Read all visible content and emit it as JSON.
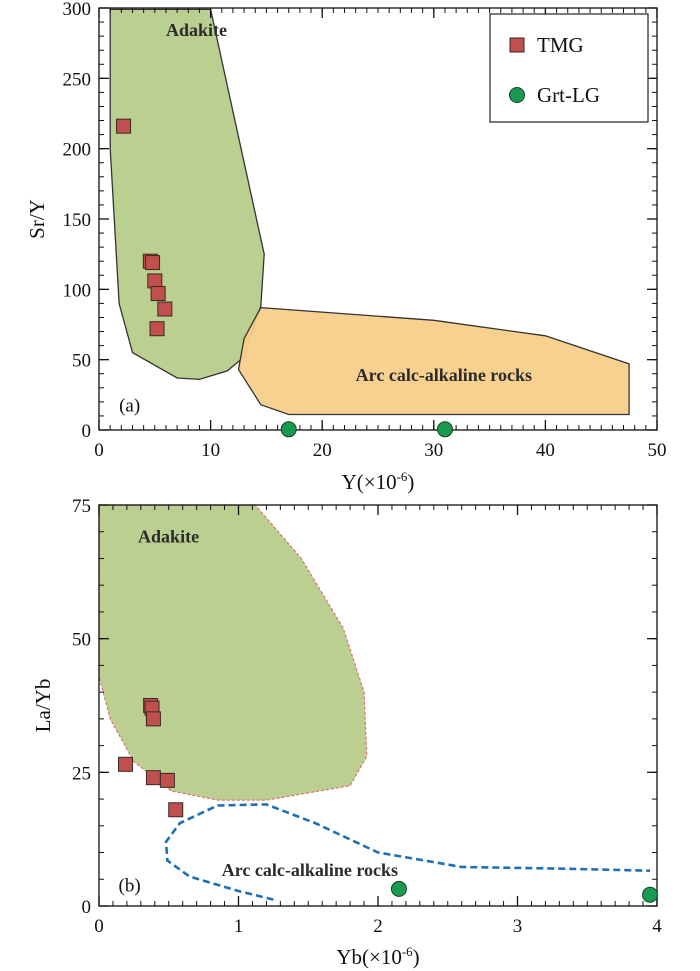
{
  "chart_data": [
    {
      "type": "scatter",
      "panel_label": "(a)",
      "xlabel": "Y(×10",
      "xlabel_sup": "-6",
      "xlabel_close": ")",
      "ylabel": "Sr/Y",
      "xlim": [
        0,
        50
      ],
      "ylim": [
        0,
        300
      ],
      "x_ticks": [
        "0",
        "10",
        "20",
        "30",
        "40",
        "50"
      ],
      "y_ticks": [
        "0",
        "50",
        "100",
        "150",
        "200",
        "250",
        "300"
      ],
      "regions": [
        {
          "name": "Adakite",
          "fill": "#b7cc8a",
          "stroke": "#333333",
          "polygon": [
            [
              1,
              299
            ],
            [
              10,
              299
            ],
            [
              14.8,
              125
            ],
            [
              14.5,
              88
            ],
            [
              13,
              52
            ],
            [
              11.5,
              42
            ],
            [
              9,
              36
            ],
            [
              7,
              37
            ],
            [
              3,
              55
            ],
            [
              1.8,
              90
            ],
            [
              1,
              200
            ]
          ]
        },
        {
          "name": "Arc calc-alkaline rocks",
          "fill": "#f8cf8a",
          "stroke": "#333333",
          "polygon": [
            [
              14.5,
              87
            ],
            [
              30,
              78
            ],
            [
              40,
              67
            ],
            [
              47.5,
              47
            ],
            [
              47.5,
              11
            ],
            [
              17,
              11
            ],
            [
              14.5,
              18
            ],
            [
              12.5,
              43
            ],
            [
              13,
              65
            ]
          ]
        }
      ],
      "series": [
        {
          "name": "TMG",
          "marker": "square",
          "color": "#c0504d",
          "points": [
            [
              2.2,
              216
            ],
            [
              4.6,
              120
            ],
            [
              4.8,
              119
            ],
            [
              5.0,
              106
            ],
            [
              5.3,
              97
            ],
            [
              5.9,
              86
            ],
            [
              5.2,
              72
            ]
          ]
        },
        {
          "name": "Grt-LG",
          "marker": "circle",
          "color": "#1a9a50",
          "points": [
            [
              17,
              0.5
            ],
            [
              31,
              0.5
            ]
          ]
        }
      ],
      "legend": {
        "placement": "top-right",
        "items": [
          "TMG",
          "Grt-LG"
        ]
      }
    },
    {
      "type": "scatter",
      "panel_label": "(b)",
      "xlabel": "Yb(×10",
      "xlabel_sup": "-6",
      "xlabel_close": ")",
      "ylabel": "La/Yb",
      "xlim": [
        0,
        4
      ],
      "ylim": [
        0,
        75
      ],
      "x_ticks": [
        "0",
        "1",
        "2",
        "3",
        "4"
      ],
      "y_ticks": [
        "0",
        "25",
        "50",
        "75"
      ],
      "regions": [
        {
          "name": "Adakite",
          "fill": "#b7cc8a",
          "stroke": "#e07070",
          "dashed": true,
          "polygon": [
            [
              0,
              75
            ],
            [
              1.12,
              75
            ],
            [
              1.45,
              65
            ],
            [
              1.75,
              52
            ],
            [
              1.9,
              40
            ],
            [
              1.92,
              28
            ],
            [
              1.8,
              22.5
            ],
            [
              1.2,
              19.8
            ],
            [
              0.85,
              19.8
            ],
            [
              0.52,
              21.5
            ],
            [
              0.25,
              27
            ],
            [
              0.08,
              35
            ],
            [
              0,
              43
            ]
          ]
        },
        {
          "name": "Arc calc-alkaline rocks",
          "stroke": "#1f6fb5",
          "dashed": true,
          "open": true,
          "polyline": [
            [
              1.25,
              1.2
            ],
            [
              1.0,
              2.8
            ],
            [
              0.65,
              5.5
            ],
            [
              0.49,
              8.5
            ],
            [
              0.48,
              12
            ],
            [
              0.58,
              15.5
            ],
            [
              0.85,
              18.8
            ],
            [
              1.2,
              19
            ],
            [
              1.55,
              15.5
            ],
            [
              2.0,
              10
            ],
            [
              2.6,
              7.3
            ],
            [
              3.3,
              7
            ],
            [
              3.95,
              6.6
            ]
          ]
        }
      ],
      "series": [
        {
          "name": "TMG",
          "marker": "square",
          "color": "#c0504d",
          "points": [
            [
              0.19,
              26.5
            ],
            [
              0.37,
              37.5
            ],
            [
              0.38,
              37
            ],
            [
              0.39,
              35
            ],
            [
              0.39,
              24
            ],
            [
              0.49,
              23.5
            ],
            [
              0.55,
              18
            ]
          ]
        },
        {
          "name": "Grt-LG",
          "marker": "circle",
          "color": "#1a9a50",
          "points": [
            [
              2.15,
              3.2
            ],
            [
              3.95,
              2.1
            ]
          ]
        }
      ]
    }
  ]
}
